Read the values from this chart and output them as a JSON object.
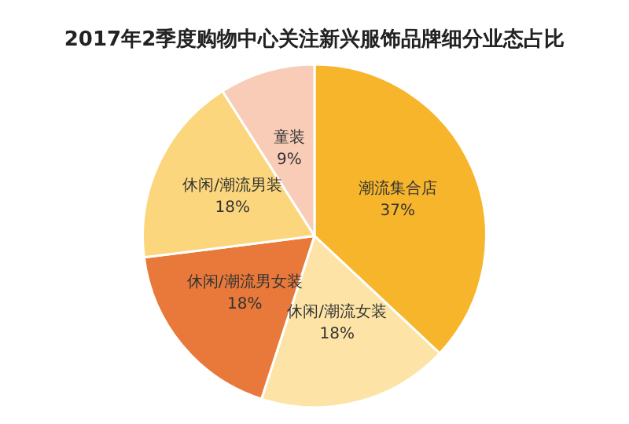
{
  "chart_data": {
    "type": "pie",
    "title": "2017年2季度购物中心关注新兴服饰品牌细分业态占比",
    "categories": [
      "潮流集合店",
      "休闲/潮流女装",
      "休闲/潮流男女装",
      "休闲/潮流男装",
      "童装"
    ],
    "values": [
      37,
      18,
      18,
      18,
      9
    ],
    "value_labels": [
      "37%",
      "18%",
      "18%",
      "18%",
      "9%"
    ],
    "colors": [
      "#f7b52c",
      "#fde4a6",
      "#e8793a",
      "#fbd67c",
      "#f9ccb8"
    ]
  }
}
